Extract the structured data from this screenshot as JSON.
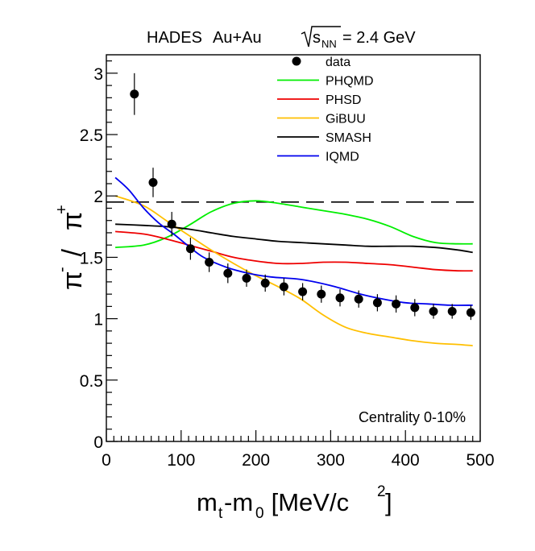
{
  "chart_data": {
    "type": "line",
    "title": {
      "experiment": "HADES",
      "system": "Au+Au",
      "energy_value": "= 2.4 GeV",
      "energy_symbol": "s",
      "energy_subscript": "NN"
    },
    "annotation": "Centrality 0-10%",
    "xlabel": {
      "main": "m",
      "sub1": "t",
      "mid": "-m",
      "sub2": "0",
      "tail": " [MeV/c",
      "sup": "2",
      "close": "]"
    },
    "ylabel": {
      "a": "π",
      "a_sup": "-",
      "sep": " / ",
      "b": "π",
      "b_sup": "+"
    },
    "xlim": [
      0,
      500
    ],
    "ylim": [
      0,
      3.15
    ],
    "x_ticks": [
      "0",
      "100",
      "200",
      "300",
      "400",
      "500"
    ],
    "y_ticks": [
      "0",
      "0.5",
      "1",
      "1.5",
      "2",
      "2.5",
      "3"
    ],
    "reference_line": {
      "y": 1.95,
      "style": "dashed",
      "color": "#000000"
    },
    "legend_position": "top-right",
    "data_points": {
      "name": "data",
      "x": [
        37.5,
        62.5,
        87.5,
        112.5,
        137.5,
        162.5,
        187.5,
        212.5,
        237.5,
        262.5,
        287.5,
        312.5,
        337.5,
        362.5,
        387.5,
        412.5,
        437.5,
        462.5,
        487.5
      ],
      "y": [
        2.83,
        2.11,
        1.77,
        1.57,
        1.46,
        1.37,
        1.33,
        1.29,
        1.26,
        1.22,
        1.2,
        1.17,
        1.16,
        1.13,
        1.12,
        1.09,
        1.06,
        1.06,
        1.05
      ],
      "err": [
        0.17,
        0.12,
        0.1,
        0.09,
        0.08,
        0.08,
        0.07,
        0.07,
        0.07,
        0.07,
        0.07,
        0.07,
        0.07,
        0.07,
        0.07,
        0.07,
        0.06,
        0.06,
        0.06
      ]
    },
    "series": [
      {
        "name": "PHQMD",
        "color": "#00ee00",
        "x": [
          12,
          50,
          80,
          110,
          140,
          170,
          200,
          230,
          260,
          290,
          320,
          350,
          380,
          410,
          440,
          470,
          490
        ],
        "y": [
          1.58,
          1.6,
          1.66,
          1.76,
          1.87,
          1.94,
          1.96,
          1.94,
          1.91,
          1.88,
          1.85,
          1.81,
          1.75,
          1.67,
          1.62,
          1.61,
          1.61
        ]
      },
      {
        "name": "PHSD",
        "color": "#ee0000",
        "x": [
          12,
          50,
          80,
          110,
          140,
          170,
          200,
          230,
          260,
          290,
          320,
          350,
          380,
          410,
          440,
          470,
          490
        ],
        "y": [
          1.71,
          1.69,
          1.65,
          1.6,
          1.55,
          1.5,
          1.47,
          1.45,
          1.45,
          1.46,
          1.46,
          1.45,
          1.44,
          1.42,
          1.4,
          1.39,
          1.39
        ]
      },
      {
        "name": "GiBUU",
        "color": "#ffbf00",
        "x": [
          12,
          50,
          80,
          110,
          140,
          170,
          200,
          230,
          260,
          290,
          320,
          350,
          380,
          410,
          440,
          470,
          490
        ],
        "y": [
          2.0,
          1.92,
          1.8,
          1.68,
          1.56,
          1.45,
          1.35,
          1.26,
          1.16,
          1.03,
          0.93,
          0.88,
          0.85,
          0.82,
          0.8,
          0.79,
          0.78
        ]
      },
      {
        "name": "SMASH",
        "color": "#000000",
        "x": [
          12,
          50,
          80,
          110,
          140,
          170,
          200,
          230,
          260,
          290,
          320,
          350,
          380,
          410,
          440,
          470,
          490
        ],
        "y": [
          1.77,
          1.76,
          1.75,
          1.73,
          1.7,
          1.67,
          1.65,
          1.63,
          1.62,
          1.61,
          1.6,
          1.59,
          1.59,
          1.59,
          1.58,
          1.56,
          1.54
        ]
      },
      {
        "name": "IQMD",
        "color": "#0000ee",
        "x": [
          12,
          30,
          50,
          70,
          90,
          110,
          130,
          160,
          190,
          220,
          260,
          300,
          340,
          370,
          400,
          430,
          460,
          490
        ],
        "y": [
          2.15,
          2.05,
          1.9,
          1.78,
          1.69,
          1.59,
          1.5,
          1.42,
          1.37,
          1.34,
          1.32,
          1.27,
          1.2,
          1.16,
          1.13,
          1.12,
          1.11,
          1.11
        ]
      }
    ]
  }
}
